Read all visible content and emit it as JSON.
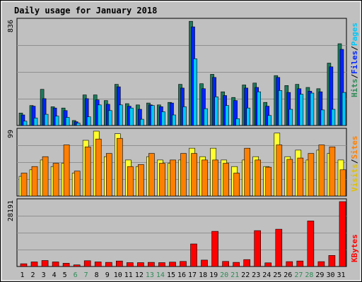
{
  "title": "Daily usage for January 2018",
  "colors": {
    "background": "#C0C0C0",
    "frame": "#E0E0E0",
    "title": "#0000CC",
    "hits": "#1E7A5C",
    "files": "#0024FF",
    "pages": "#00C8F8",
    "visits": "#FFFF30",
    "sites": "#FF8000",
    "kbytes": "#FF0000",
    "weekend": "#2E8B57",
    "weekday": "#000000"
  },
  "legend": {
    "top": [
      {
        "text": "Hits",
        "color": "#2E8B57"
      },
      {
        "text": "/",
        "color": "#000000"
      },
      {
        "text": "Files",
        "color": "#0024FF"
      },
      {
        "text": "/",
        "color": "#000000"
      },
      {
        "text": "Pages",
        "color": "#00C8F8"
      }
    ],
    "middle": [
      {
        "text": "Visits",
        "color": "#E0C000"
      },
      {
        "text": "/",
        "color": "#000000"
      },
      {
        "text": "Sites",
        "color": "#FF8000"
      }
    ],
    "bottom": [
      {
        "text": "KBytes",
        "color": "#FF0000"
      }
    ]
  },
  "chart_data": [
    {
      "type": "bar",
      "panel": "hits-files-pages",
      "ymax_label": "836",
      "ylim": [
        0,
        836
      ],
      "categories": [
        "1",
        "2",
        "3",
        "4",
        "5",
        "6",
        "7",
        "8",
        "9",
        "10",
        "11",
        "12",
        "13",
        "14",
        "15",
        "16",
        "17",
        "18",
        "19",
        "20",
        "21",
        "22",
        "23",
        "24",
        "25",
        "26",
        "27",
        "28",
        "29",
        "30",
        "31"
      ],
      "series": [
        {
          "name": "Hits",
          "values": [
            100,
            160,
            290,
            150,
            140,
            40,
            245,
            245,
            200,
            330,
            175,
            165,
            180,
            165,
            185,
            330,
            835,
            335,
            410,
            270,
            225,
            325,
            340,
            185,
            400,
            320,
            330,
            305,
            295,
            500,
            655
          ]
        },
        {
          "name": "Files",
          "values": [
            85,
            155,
            215,
            140,
            120,
            30,
            215,
            205,
            170,
            310,
            155,
            130,
            165,
            150,
            180,
            300,
            790,
            295,
            385,
            240,
            200,
            300,
            305,
            155,
            385,
            265,
            295,
            275,
            270,
            470,
            610
          ]
        },
        {
          "name": "Pages",
          "values": [
            35,
            60,
            90,
            75,
            65,
            20,
            70,
            165,
            120,
            165,
            140,
            50,
            160,
            110,
            85,
            150,
            535,
            135,
            230,
            160,
            55,
            140,
            270,
            80,
            280,
            130,
            250,
            260,
            125,
            130,
            265
          ]
        }
      ]
    },
    {
      "type": "bar",
      "panel": "visits-sites",
      "ymax_label": "99",
      "ylim": [
        0,
        99
      ],
      "categories": [
        "1",
        "2",
        "3",
        "4",
        "5",
        "6",
        "7",
        "8",
        "9",
        "10",
        "11",
        "12",
        "13",
        "14",
        "15",
        "16",
        "17",
        "18",
        "19",
        "20",
        "21",
        "22",
        "23",
        "24",
        "25",
        "26",
        "27",
        "28",
        "29",
        "30",
        "31"
      ],
      "series": [
        {
          "name": "Visits",
          "values": [
            30,
            40,
            55,
            45,
            50,
            35,
            85,
            99,
            60,
            95,
            55,
            45,
            60,
            55,
            50,
            55,
            73,
            60,
            73,
            55,
            45,
            55,
            60,
            45,
            96,
            60,
            70,
            55,
            70,
            65,
            55
          ]
        },
        {
          "name": "Sites",
          "values": [
            35,
            45,
            60,
            50,
            78,
            38,
            75,
            87,
            65,
            88,
            45,
            48,
            65,
            50,
            55,
            65,
            65,
            55,
            55,
            50,
            35,
            73,
            55,
            44,
            78,
            56,
            58,
            65,
            78,
            75,
            40
          ]
        }
      ]
    },
    {
      "type": "bar",
      "panel": "kbytes",
      "ymax_label": "28191",
      "ylim": [
        0,
        28191
      ],
      "categories": [
        "1",
        "2",
        "3",
        "4",
        "5",
        "6",
        "7",
        "8",
        "9",
        "10",
        "11",
        "12",
        "13",
        "14",
        "15",
        "16",
        "17",
        "18",
        "19",
        "20",
        "21",
        "22",
        "23",
        "24",
        "25",
        "26",
        "27",
        "28",
        "29",
        "30",
        "31"
      ],
      "series": [
        {
          "name": "KBytes",
          "values": [
            1200,
            2000,
            2600,
            2000,
            1400,
            700,
            2500,
            2000,
            1800,
            2400,
            1700,
            1700,
            1800,
            1700,
            1900,
            2200,
            9800,
            2800,
            15300,
            2200,
            1800,
            3000,
            15600,
            1600,
            16200,
            2100,
            2400,
            19800,
            2100,
            4800,
            28191
          ]
        }
      ]
    }
  ],
  "weekend_days": [
    "6",
    "7",
    "13",
    "14",
    "20",
    "21",
    "27",
    "28"
  ]
}
